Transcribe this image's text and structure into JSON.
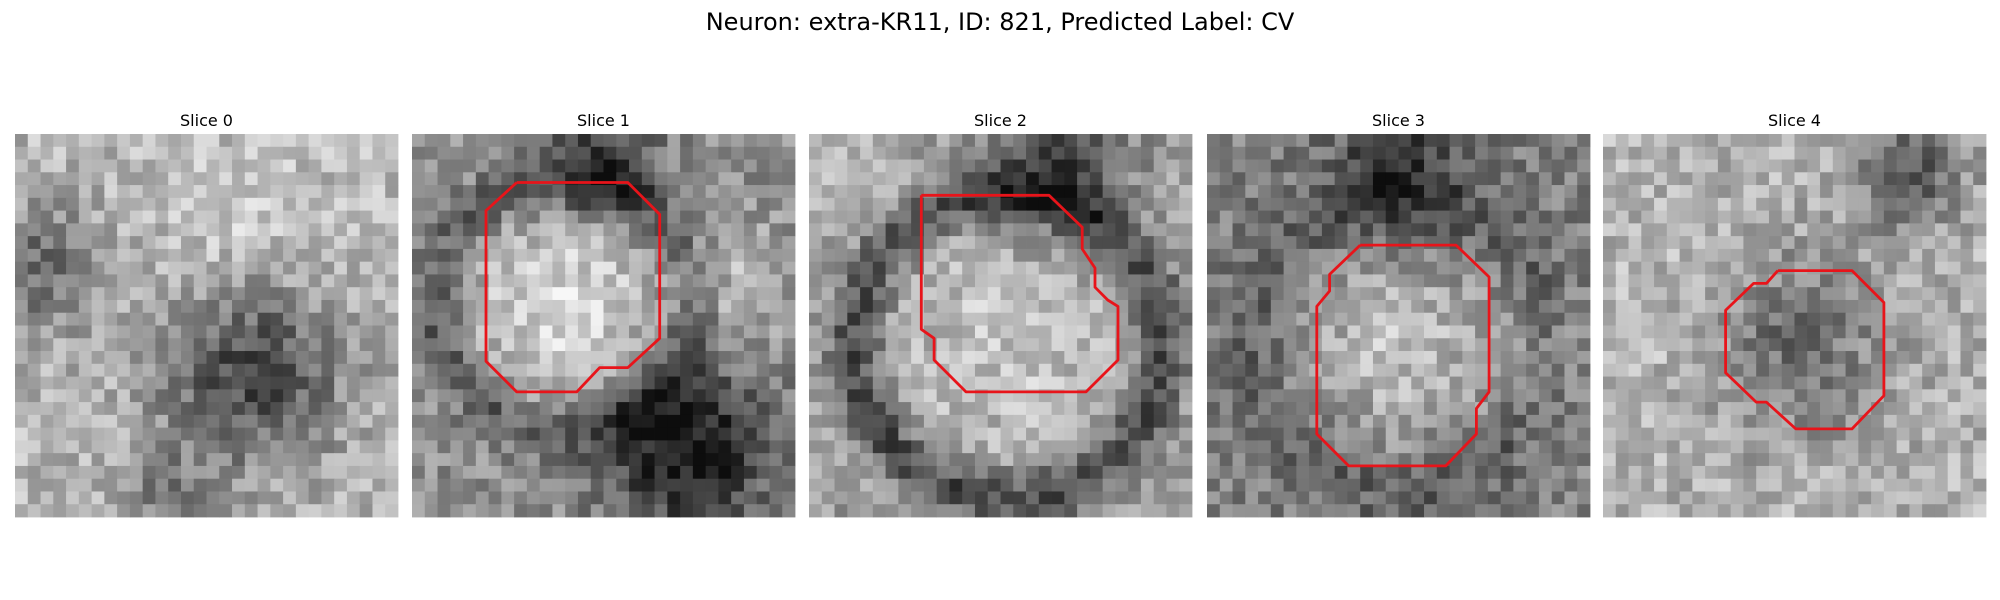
{
  "title": "Neuron: extra-KR11, ID: 821, Predicted Label: CV",
  "panels": [
    {
      "title": "Slice 0"
    },
    {
      "title": "Slice 1"
    },
    {
      "title": "Slice 2"
    },
    {
      "title": "Slice 3"
    },
    {
      "title": "Slice 4"
    }
  ]
}
